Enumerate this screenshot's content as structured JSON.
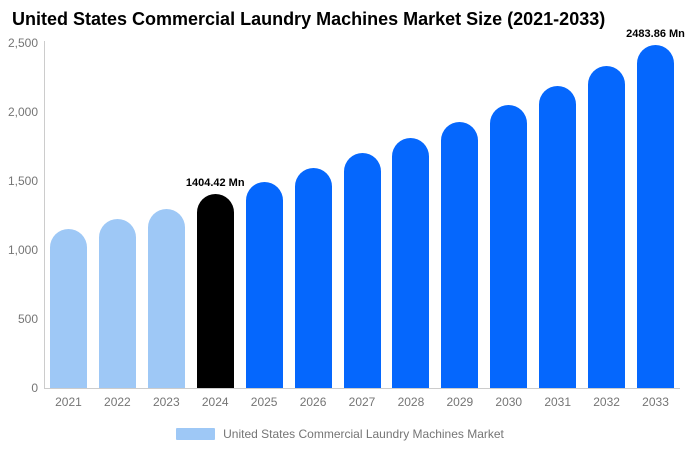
{
  "title": "United States Commercial Laundry Machines Market Size (2021-2033)",
  "legend": {
    "label": "United States Commercial Laundry Machines Market"
  },
  "colors": {
    "historical_bar": "#9EC8F6",
    "base_year_bar": "#000000",
    "forecast_bar": "#0567FD",
    "axis_line": "#CCCCCC",
    "tick_text": "#757575",
    "legend_text": "#757575",
    "data_label_text": "#000000",
    "background": "#FFFFFF"
  },
  "chart_data": {
    "type": "bar",
    "title": "United States Commercial Laundry Machines Market Size (2021-2033)",
    "unit": "Mn",
    "categories": [
      "2021",
      "2022",
      "2023",
      "2024",
      "2025",
      "2026",
      "2027",
      "2028",
      "2029",
      "2030",
      "2031",
      "2032",
      "2033"
    ],
    "series": [
      {
        "name": "United States Commercial Laundry Machines Market",
        "values": [
          1155,
          1225,
          1300,
          1404.42,
          1495,
          1595,
          1700,
          1810,
          1925,
          2050,
          2190,
          2330,
          2483.86
        ]
      }
    ],
    "point_roles": [
      "historical",
      "historical",
      "historical",
      "base_year",
      "forecast",
      "forecast",
      "forecast",
      "forecast",
      "forecast",
      "forecast",
      "forecast",
      "forecast",
      "forecast"
    ],
    "annotations": [
      {
        "category": "2024",
        "text": "1404.42 Mn"
      },
      {
        "category": "2033",
        "text": "2483.86 Mn"
      }
    ],
    "xlabel": "",
    "ylabel": "",
    "ylim": [
      0,
      2500
    ],
    "y_ticks": [
      {
        "value": 0,
        "label": "0"
      },
      {
        "value": 500,
        "label": "500"
      },
      {
        "value": 1000,
        "label": "1,000"
      },
      {
        "value": 1500,
        "label": "1,500"
      },
      {
        "value": 2000,
        "label": "2,000"
      },
      {
        "value": 2500,
        "label": "2,500"
      }
    ],
    "grid": false,
    "legend_position": "bottom"
  }
}
